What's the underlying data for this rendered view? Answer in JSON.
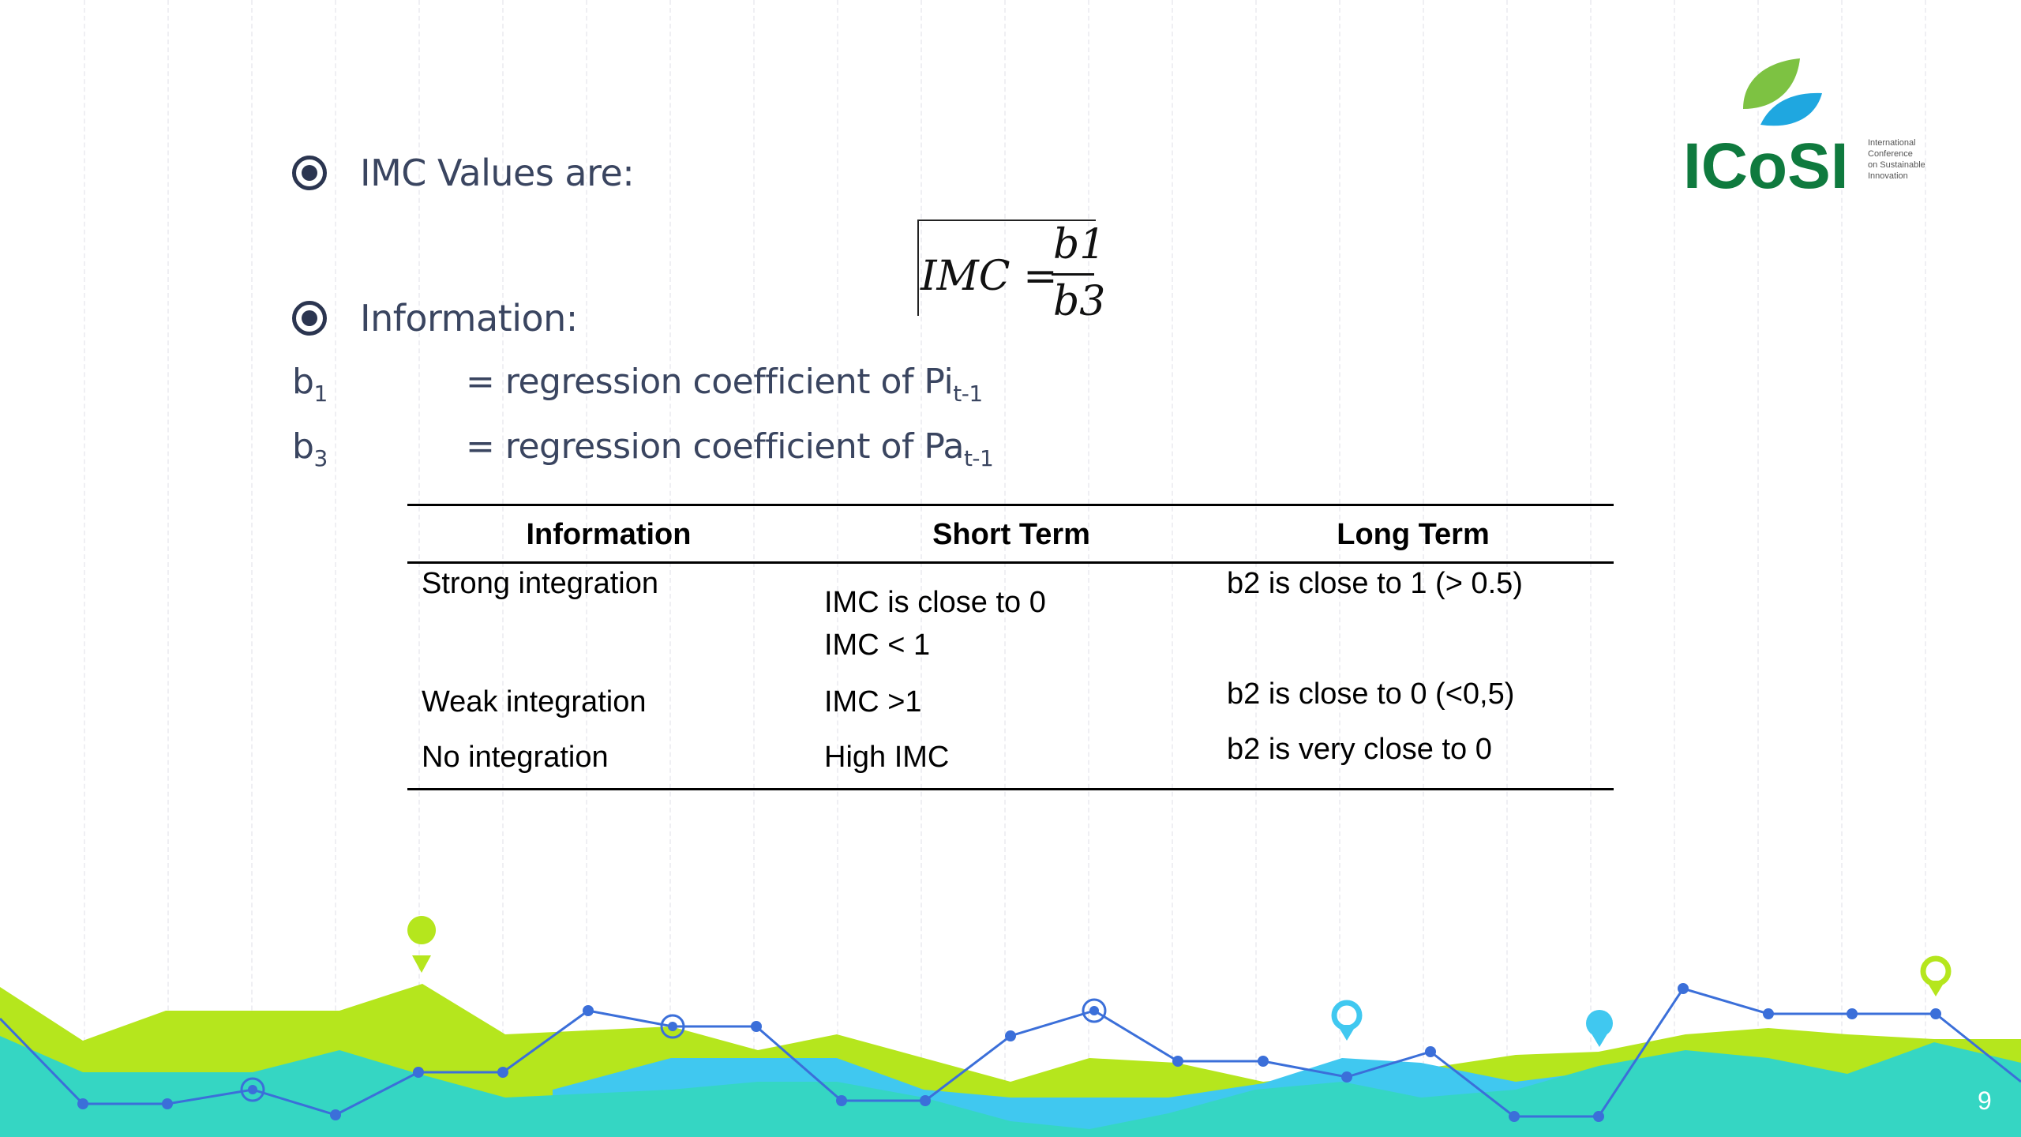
{
  "slide": {
    "bullet1": "IMC Values are:",
    "bullet2": "Information:",
    "formula": {
      "lhs": "IMC",
      "eq": "=",
      "numerator": "b1",
      "denominator": "b3"
    },
    "definitions": [
      {
        "symbol": "b",
        "sub": "1",
        "text": "= regression coefficient of Pi",
        "text_sub": "t-1"
      },
      {
        "symbol": "b",
        "sub": "3",
        "text": "= regression coefficient of Pa",
        "text_sub": "t-1"
      }
    ],
    "table": {
      "headers": [
        "Information",
        "Short Term",
        "Long Term"
      ],
      "rows": [
        {
          "info": "Strong integration",
          "short": [
            "IMC is close to 0",
            "IMC < 1"
          ],
          "long": "b2 is close to 1 (> 0.5)"
        },
        {
          "info": "Weak integration",
          "short": [
            "IMC >1"
          ],
          "long": "b2 is close to 0 (<0,5)"
        },
        {
          "info": "No integration",
          "short": [
            "High IMC"
          ],
          "long": "b2 is very close to 0"
        }
      ]
    },
    "page_number": "9"
  },
  "logo": {
    "text": "ICoSI",
    "tagline": [
      "International",
      "Conference",
      "on Sustainable",
      "Innovation"
    ],
    "leaf_green": "#7dc242",
    "leaf_blue": "#1fa7e0",
    "text_color": "#0f7a3e"
  },
  "colors": {
    "lime": "#b5e61d",
    "teal": "#35d6c3",
    "sky": "#40c8f0",
    "line_blue": "#3b6fd9",
    "text": "#3a4560"
  }
}
